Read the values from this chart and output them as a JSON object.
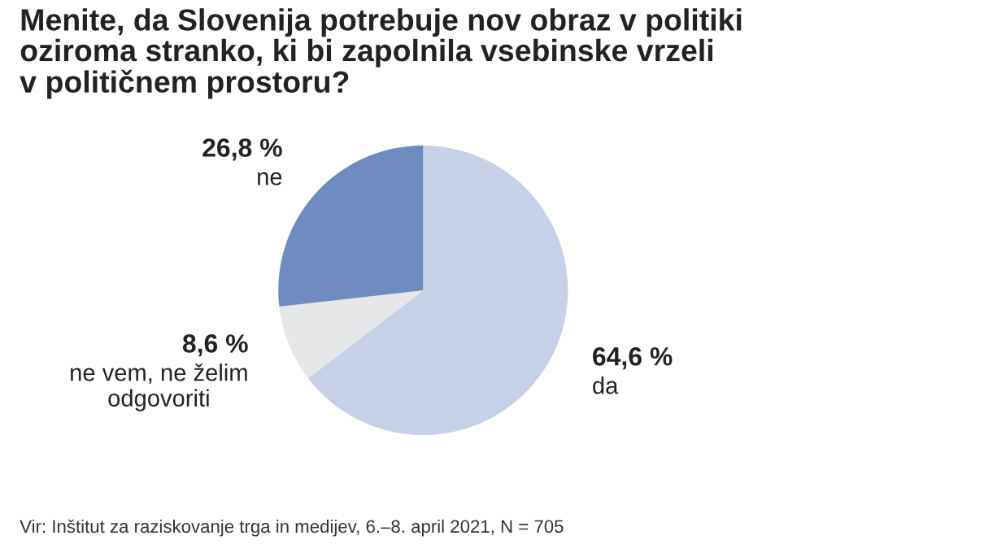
{
  "chart_data": {
    "type": "pie",
    "title": "Menite, da Slovenija potrebuje nov obraz v politiki\noziroma stranko, ki bi zapolnila vsebinske vrzeli\nv političnem prostoru?",
    "categories": [
      "da",
      "ne vem, ne želim\nodgovoriti",
      "ne"
    ],
    "values": [
      64.6,
      8.6,
      26.8
    ],
    "value_labels": [
      "64,6 %",
      "8,6 %",
      "26,8 %"
    ],
    "colors": [
      "#c6d1e7",
      "#e6e7e8",
      "#6f8bbf"
    ],
    "annotations": [
      "Vir: Inštitut za raziskovanje trga in medijev, 6.–8. april 2021, N = 705"
    ]
  }
}
